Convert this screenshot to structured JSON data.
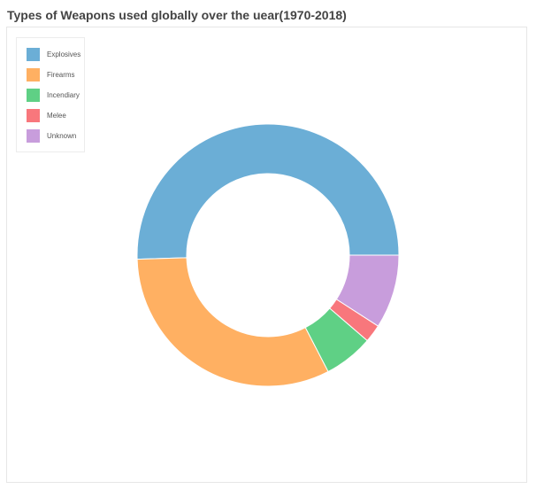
{
  "chart_data": {
    "type": "pie",
    "variant": "donut",
    "title": "Types of Weapons used globally over the uear(1970-2018)",
    "categories": [
      "Explosives",
      "Firearms",
      "Incendiary",
      "Melee",
      "Unknown"
    ],
    "values": [
      50.5,
      32.1,
      6.1,
      2.2,
      9.1
    ],
    "unit": "%",
    "colors": [
      "#6baed6",
      "#ffb062",
      "#5fd085",
      "#f8777c",
      "#c89ddc"
    ],
    "legend_position": "top-left",
    "start_angle_deg": 0,
    "direction": "clockwise-from-right-upward"
  }
}
